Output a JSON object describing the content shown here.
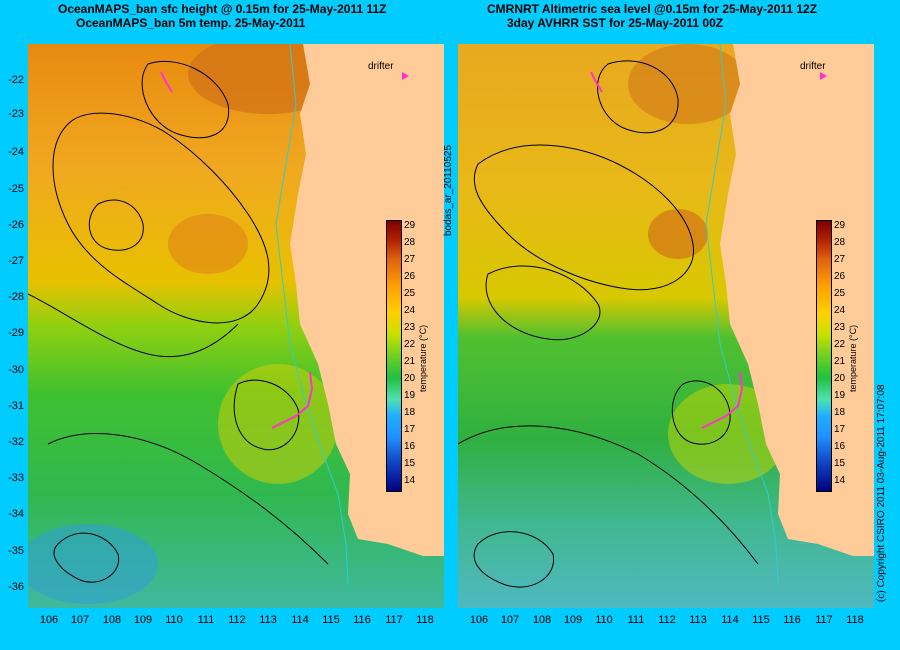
{
  "left_panel": {
    "title_line1": "OceanMAPS_ban sfc height @ 0.15m for 25-May-2011 11Z",
    "title_line2": "OceanMAPS_ban 5m temp. 25-May-2011",
    "drifter_label": "drifter",
    "colorbar_label": "temperature (°C)"
  },
  "right_panel": {
    "title_line1": "CMRNRT Altimetric sea level  @0.15m  for 25-May-2011 12Z",
    "title_line2": "3day AVHRR SST for 25-May-2011 00Z",
    "drifter_label": "drifter",
    "colorbar_label": "temperature (°C)"
  },
  "center_vertical_label": "bodas_ar_20110525",
  "right_vertical_label": "(c) Copyright CSIRO 2011   03-Aug-2011 17:07:08",
  "lat_labels": [
    "-22",
    "-23",
    "-24",
    "-25",
    "-26",
    "-27",
    "-28",
    "-29",
    "-30",
    "-31",
    "-32",
    "-33",
    "-34",
    "-35",
    "-36"
  ],
  "lon_labels": [
    "106",
    "107",
    "108",
    "109",
    "110",
    "111",
    "112",
    "113",
    "114",
    "115",
    "116",
    "117",
    "118"
  ],
  "colorbar_ticks": [
    "29",
    "28",
    "27",
    "26",
    "25",
    "24",
    "23",
    "22",
    "21",
    "20",
    "19",
    "18",
    "17",
    "16",
    "15",
    "14"
  ],
  "colors": {
    "background": "#00ccff",
    "land": "#ffcc99",
    "drifter": "#ff33cc",
    "contour": "#000000",
    "coast": "#33cccc"
  }
}
